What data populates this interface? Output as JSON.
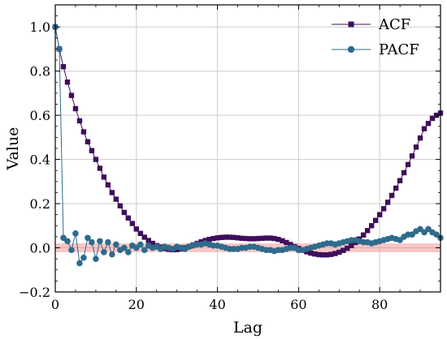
{
  "chart_data": {
    "type": "line",
    "xlabel": "Lag",
    "ylabel": "Value",
    "xlim": [
      0,
      95
    ],
    "ylim": [
      -0.2,
      1.1
    ],
    "grid": true,
    "legend_position": "top-right",
    "x_ticks": [
      0,
      20,
      40,
      60,
      80
    ],
    "x_tick_labels": [
      "0",
      "20",
      "40",
      "60",
      "80"
    ],
    "y_ticks": [
      -0.2,
      0.0,
      0.2,
      0.4,
      0.6,
      0.8,
      1.0
    ],
    "y_tick_labels": [
      "−0.2",
      "0.0",
      "0.2",
      "0.4",
      "0.6",
      "0.8",
      "1.0"
    ],
    "confidence_band": [
      -0.02,
      0.02
    ],
    "colors": {
      "acf": "#3f0f5a",
      "pacf": "#2f6b8c",
      "band": "#f08080",
      "grid": "#cccccc"
    },
    "series": [
      {
        "name": "ACF",
        "marker": "square",
        "x": [
          0,
          1,
          2,
          3,
          4,
          5,
          6,
          7,
          8,
          9,
          10,
          11,
          12,
          13,
          14,
          15,
          16,
          17,
          18,
          19,
          20,
          21,
          22,
          23,
          24,
          25,
          26,
          27,
          28,
          29,
          30,
          31,
          32,
          33,
          34,
          35,
          36,
          37,
          38,
          39,
          40,
          41,
          42,
          43,
          44,
          45,
          46,
          47,
          48,
          49,
          50,
          51,
          52,
          53,
          54,
          55,
          56,
          57,
          58,
          59,
          60,
          61,
          62,
          63,
          64,
          65,
          66,
          67,
          68,
          69,
          70,
          71,
          72,
          73,
          74,
          75,
          76,
          77,
          78,
          79,
          80,
          81,
          82,
          83,
          84,
          85,
          86,
          87,
          88,
          89,
          90,
          91,
          92,
          93,
          94,
          95
        ],
        "values": [
          1.0,
          0.9,
          0.82,
          0.75,
          0.69,
          0.63,
          0.575,
          0.525,
          0.48,
          0.44,
          0.4,
          0.36,
          0.32,
          0.285,
          0.25,
          0.22,
          0.19,
          0.16,
          0.135,
          0.11,
          0.085,
          0.065,
          0.048,
          0.033,
          0.02,
          0.01,
          0.003,
          -0.003,
          -0.007,
          -0.009,
          -0.008,
          -0.005,
          0.0,
          0.006,
          0.013,
          0.02,
          0.027,
          0.033,
          0.038,
          0.042,
          0.045,
          0.047,
          0.048,
          0.048,
          0.047,
          0.045,
          0.043,
          0.042,
          0.041,
          0.041,
          0.042,
          0.043,
          0.044,
          0.044,
          0.042,
          0.038,
          0.032,
          0.024,
          0.015,
          0.006,
          -0.003,
          -0.011,
          -0.018,
          -0.024,
          -0.028,
          -0.031,
          -0.032,
          -0.032,
          -0.03,
          -0.026,
          -0.02,
          -0.012,
          -0.002,
          0.01,
          0.024,
          0.04,
          0.058,
          0.078,
          0.1,
          0.124,
          0.15,
          0.177,
          0.206,
          0.237,
          0.27,
          0.304,
          0.34,
          0.377,
          0.416,
          0.456,
          0.497,
          0.539,
          0.563,
          0.586,
          0.6,
          0.61
        ]
      },
      {
        "name": "PACF",
        "marker": "circle",
        "x": [
          0,
          1,
          2,
          3,
          4,
          5,
          6,
          7,
          8,
          9,
          10,
          11,
          12,
          13,
          14,
          15,
          16,
          17,
          18,
          19,
          20,
          21,
          22,
          23,
          24,
          25,
          26,
          27,
          28,
          29,
          30,
          31,
          32,
          33,
          34,
          35,
          36,
          37,
          38,
          39,
          40,
          41,
          42,
          43,
          44,
          45,
          46,
          47,
          48,
          49,
          50,
          51,
          52,
          53,
          54,
          55,
          56,
          57,
          58,
          59,
          60,
          61,
          62,
          63,
          64,
          65,
          66,
          67,
          68,
          69,
          70,
          71,
          72,
          73,
          74,
          75,
          76,
          77,
          78,
          79,
          80,
          81,
          82,
          83,
          84,
          85,
          86,
          87,
          88,
          89,
          90,
          91,
          92,
          93,
          94,
          95
        ],
        "values": [
          1.0,
          0.9,
          0.045,
          0.03,
          -0.01,
          0.065,
          -0.07,
          -0.045,
          0.045,
          0.025,
          -0.05,
          0.03,
          -0.02,
          0.025,
          -0.03,
          0.015,
          -0.01,
          0.0,
          -0.02,
          0.01,
          0.0,
          0.015,
          -0.01,
          0.01,
          0.0,
          0.005,
          -0.005,
          0.005,
          0.0,
          -0.005,
          0.005,
          0.0,
          -0.005,
          0.005,
          0.01,
          0.015,
          0.015,
          0.02,
          0.015,
          0.01,
          0.01,
          0.005,
          0.0,
          -0.005,
          -0.005,
          -0.005,
          0.0,
          0.0,
          0.005,
          0.005,
          0.0,
          -0.005,
          -0.01,
          -0.01,
          -0.015,
          -0.01,
          -0.01,
          -0.005,
          0.0,
          0.0,
          -0.01,
          -0.01,
          -0.005,
          0.0,
          0.005,
          0.01,
          0.015,
          0.02,
          0.02,
          0.015,
          0.02,
          0.025,
          0.03,
          0.035,
          0.035,
          0.03,
          0.025,
          0.025,
          0.02,
          0.025,
          0.03,
          0.035,
          0.04,
          0.045,
          0.04,
          0.035,
          0.05,
          0.06,
          0.06,
          0.075,
          0.085,
          0.07,
          0.085,
          0.07,
          0.06,
          0.045
        ]
      }
    ]
  }
}
